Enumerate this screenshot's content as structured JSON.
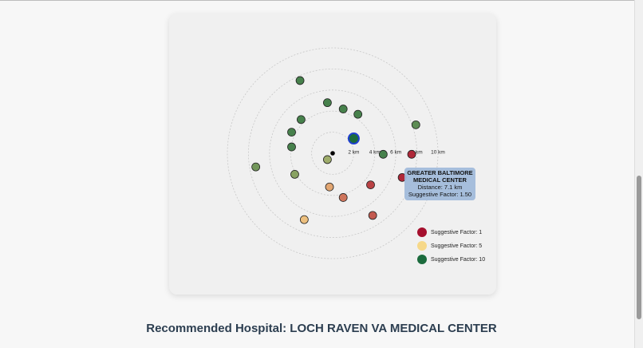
{
  "chart_data": {
    "type": "scatter",
    "xlim": [
      -10,
      10
    ],
    "ylim": [
      -10,
      10
    ],
    "rings": [
      {
        "value": 2,
        "label": "2 km"
      },
      {
        "value": 4,
        "label": "4 km"
      },
      {
        "value": 6,
        "label": "6 km"
      },
      {
        "value": 8,
        "label": "8 km"
      },
      {
        "value": 10,
        "label": "10 km"
      }
    ],
    "origin": [
      0,
      0
    ],
    "series": [
      {
        "x": [
          -3.1,
          -0.5,
          1.0,
          2.4,
          -3.0,
          7.9,
          -3.9,
          -3.9,
          2.0,
          4.8,
          7.5,
          -0.5,
          -7.3,
          -3.6,
          6.6,
          3.6,
          -0.3,
          1.0,
          3.8,
          -2.7
        ],
        "y": [
          6.9,
          4.8,
          4.2,
          3.7,
          3.2,
          2.7,
          2.0,
          0.6,
          1.4,
          -0.1,
          -0.1,
          -0.6,
          -1.3,
          -2.0,
          -2.3,
          -3.0,
          -3.2,
          -4.2,
          -5.9,
          -6.3
        ],
        "factor": [
          9,
          9,
          9,
          9,
          9,
          8.5,
          9,
          9,
          10,
          9,
          1.5,
          7,
          8,
          7.5,
          1.5,
          2,
          4,
          3,
          2.5,
          4.5
        ]
      }
    ],
    "selected": 8,
    "tooltip": {
      "point": 14,
      "title": "GREATER BALTIMORE MEDICAL CENTER",
      "distance": "Distance: 7.1 km",
      "factor": "Suggestive Factor: 1.50"
    },
    "legend": [
      {
        "label": "Suggestive Factor: 1",
        "value": 1,
        "color": "#a50f2d"
      },
      {
        "label": "Suggestive Factor: 5",
        "value": 5,
        "color": "#f6d889"
      },
      {
        "label": "Suggestive Factor: 10",
        "value": 10,
        "color": "#1b6b3d"
      }
    ]
  },
  "recommendation": "Recommended Hospital: LOCH RAVEN VA MEDICAL CENTER"
}
